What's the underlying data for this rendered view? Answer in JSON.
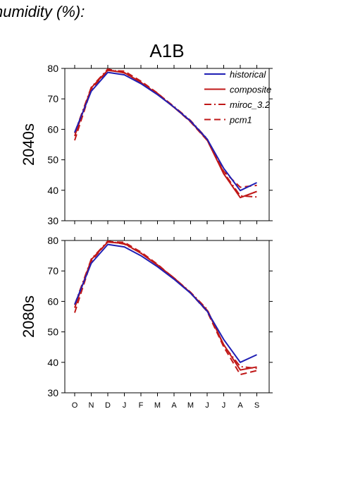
{
  "page": {
    "title": "humidity (%):"
  },
  "chart_data": [
    {
      "type": "line",
      "title": "A1B",
      "ylabel": "2040s",
      "xlabel": "",
      "ylim": [
        30,
        80
      ],
      "yticks": [
        30,
        40,
        50,
        60,
        70,
        80
      ],
      "categories": [
        "O",
        "N",
        "D",
        "J",
        "F",
        "M",
        "A",
        "M",
        "J",
        "J",
        "A",
        "S"
      ],
      "legend_position": "top-right",
      "series": [
        {
          "name": "historical",
          "color": "#1f1fb4",
          "style": "solid",
          "values": [
            59.0,
            72.5,
            78.7,
            77.9,
            75.0,
            71.4,
            67.3,
            62.7,
            56.8,
            47.2,
            39.9,
            42.5
          ]
        },
        {
          "name": "composite",
          "color": "#c01818",
          "style": "solid",
          "values": [
            57.8,
            73.6,
            79.4,
            78.6,
            75.4,
            71.6,
            67.2,
            62.6,
            56.5,
            45.4,
            37.6,
            39.6
          ]
        },
        {
          "name": "miroc_3.2",
          "color": "#c01818",
          "style": "dashdot",
          "values": [
            58.8,
            73.8,
            79.8,
            78.5,
            75.5,
            71.8,
            67.5,
            62.9,
            56.9,
            45.8,
            38.2,
            37.8
          ]
        },
        {
          "name": "pcm1",
          "color": "#c01818",
          "style": "dashed",
          "values": [
            56.4,
            73.2,
            79.3,
            79.1,
            75.8,
            71.9,
            67.3,
            62.4,
            56.4,
            46.2,
            41.0,
            41.6
          ]
        }
      ]
    },
    {
      "type": "line",
      "title": "",
      "ylabel": "2080s",
      "xlabel": "",
      "ylim": [
        30,
        80
      ],
      "yticks": [
        30,
        40,
        50,
        60,
        70,
        80
      ],
      "categories": [
        "O",
        "N",
        "D",
        "J",
        "F",
        "M",
        "A",
        "M",
        "J",
        "J",
        "A",
        "S"
      ],
      "series": [
        {
          "name": "historical",
          "color": "#1f1fb4",
          "style": "solid",
          "values": [
            59.0,
            72.5,
            78.7,
            77.9,
            75.0,
            71.4,
            67.3,
            62.7,
            56.8,
            47.5,
            40.0,
            42.5
          ]
        },
        {
          "name": "composite",
          "color": "#c01818",
          "style": "solid",
          "values": [
            57.9,
            73.7,
            79.5,
            79.0,
            75.8,
            71.9,
            67.7,
            62.8,
            57.1,
            45.8,
            37.5,
            38.5
          ]
        },
        {
          "name": "miroc_3.2",
          "color": "#c01818",
          "style": "dashdot",
          "values": [
            58.9,
            73.9,
            79.8,
            78.8,
            75.9,
            72.0,
            67.7,
            63.0,
            57.4,
            45.5,
            38.6,
            38.0
          ]
        },
        {
          "name": "pcm1",
          "color": "#c01818",
          "style": "dashed",
          "values": [
            56.3,
            73.2,
            79.6,
            79.4,
            76.2,
            72.2,
            67.5,
            62.7,
            56.7,
            45.1,
            36.0,
            37.3
          ]
        }
      ]
    }
  ]
}
